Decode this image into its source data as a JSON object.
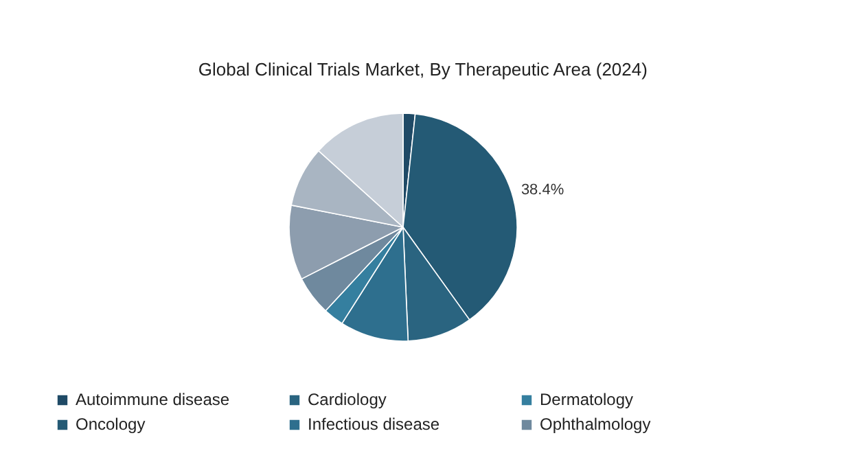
{
  "chart_data": {
    "type": "pie",
    "title": "Global Clinical Trials Market, By Therapeutic Area (2024)",
    "categories": [
      "Autoimmune disease",
      "Oncology",
      "Cardiology",
      "Infectious disease",
      "Dermatology",
      "Ophthalmology",
      null,
      null,
      null
    ],
    "values": [
      1.7,
      38.4,
      9.2,
      9.7,
      2.9,
      5.6,
      10.6,
      8.6,
      13.3
    ],
    "colors": [
      "#1f4a66",
      "#245a75",
      "#2a6480",
      "#2e6f8e",
      "#357f9f",
      "#6f899e",
      "#8d9dae",
      "#a9b5c2",
      "#c6ced8"
    ],
    "value_labels": [
      null,
      "38.4%",
      null,
      null,
      null,
      null,
      null,
      null,
      null
    ],
    "legend": "bottom"
  }
}
